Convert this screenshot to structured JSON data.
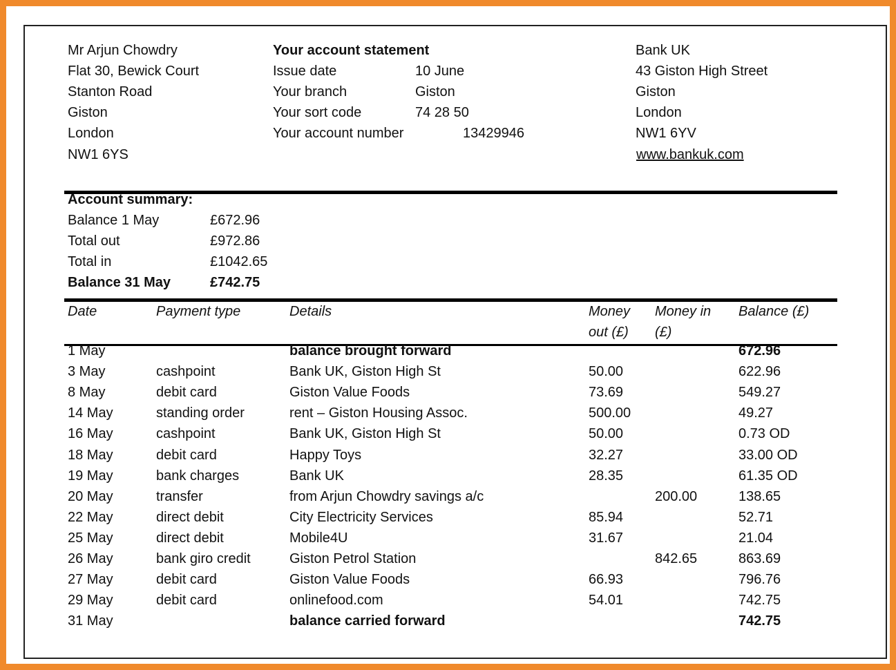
{
  "customer": {
    "lines": [
      "Mr Arjun Chowdry",
      "Flat 30, Bewick Court",
      "Stanton Road",
      "Giston",
      "London",
      "NW1 6YS"
    ]
  },
  "statement": {
    "title": "Your account statement",
    "fields": [
      {
        "label": "Issue date",
        "value": "10 June"
      },
      {
        "label": "Your branch",
        "value": "Giston"
      },
      {
        "label": "Your sort code",
        "value": "74 28 50"
      },
      {
        "label": "Your account number",
        "value": "13429946"
      }
    ]
  },
  "bank": {
    "lines": [
      "Bank UK",
      "43 Giston High Street",
      "Giston",
      "London",
      "NW1 6YV"
    ],
    "website": "www.bankuk.com"
  },
  "summary": {
    "title": "Account summary:",
    "rows": [
      {
        "label": "Balance 1 May",
        "value": "£672.96"
      },
      {
        "label": "Total out",
        "value": "£972.86"
      },
      {
        "label": "Total in",
        "value": "£1042.65"
      },
      {
        "label": "Balance 31 May",
        "value": "£742.75"
      }
    ]
  },
  "table": {
    "headers": [
      "Date",
      "Payment type",
      "Details",
      "Money out (£)",
      "Money in (£)",
      "Balance (£)"
    ],
    "rows": [
      [
        "1 May",
        null,
        "balance brought forward",
        null,
        null,
        "672.96"
      ],
      [
        "3 May",
        "cashpoint",
        "Bank UK, Giston High St",
        "50.00",
        null,
        "622.96"
      ],
      [
        "8 May",
        "debit card",
        "Giston Value Foods",
        "73.69",
        null,
        "549.27"
      ],
      [
        "14 May",
        "standing order",
        "rent – Giston Housing Assoc.",
        "500.00",
        null,
        "49.27"
      ],
      [
        "16 May",
        "cashpoint",
        "Bank UK, Giston High St",
        "50.00",
        null,
        "0.73 OD"
      ],
      [
        "18 May",
        "debit card",
        "Happy Toys",
        "32.27",
        null,
        "33.00 OD"
      ],
      [
        "19 May",
        "bank charges",
        "Bank UK",
        "28.35",
        null,
        "61.35 OD"
      ],
      [
        "20 May",
        "transfer",
        "from Arjun Chowdry savings a/c",
        null,
        "200.00",
        "138.65"
      ],
      [
        "22 May",
        "direct debit",
        "City Electricity Services",
        "85.94",
        null,
        "52.71"
      ],
      [
        "25 May",
        "direct debit",
        "Mobile4U",
        "31.67",
        null,
        "21.04"
      ],
      [
        "26 May",
        "bank giro credit",
        "Giston Petrol Station",
        null,
        "842.65",
        "863.69"
      ],
      [
        "27 May",
        "debit card",
        "Giston Value Foods",
        "66.93",
        null,
        "796.76"
      ],
      [
        "29 May",
        "debit card",
        "onlinefood.com",
        "54.01",
        null,
        "742.75"
      ],
      [
        "31 May",
        null,
        "balance carried forward",
        null,
        null,
        "742.75"
      ]
    ]
  }
}
